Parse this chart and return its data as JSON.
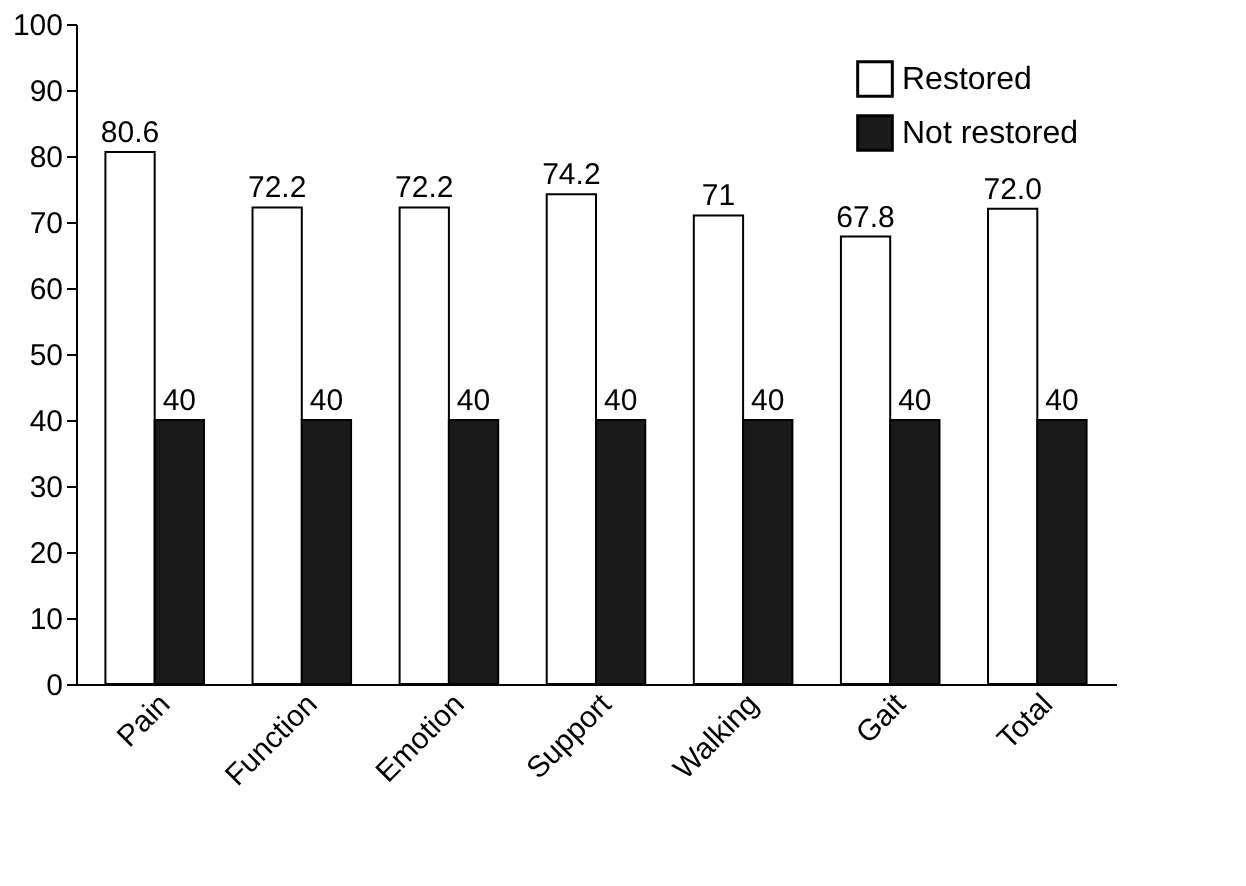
{
  "chart_data": {
    "type": "bar",
    "categories": [
      "Pain",
      "Function",
      "Emotion",
      "Support",
      "Walking",
      "Gait",
      "Total"
    ],
    "series": [
      {
        "name": "Restored",
        "color": "#ffffff",
        "values": [
          80.6,
          72.2,
          72.2,
          74.2,
          71,
          67.8,
          72.0
        ],
        "value_labels": [
          "80.6",
          "72.2",
          "72.2",
          "74.2",
          "71",
          "67.8",
          "72.0"
        ]
      },
      {
        "name": "Not restored",
        "color": "#1a1a1a",
        "values": [
          40,
          40,
          40,
          40,
          40,
          40,
          40
        ],
        "value_labels": [
          "40",
          "40",
          "40",
          "40",
          "40",
          "40",
          "40"
        ]
      }
    ],
    "ylim": [
      0,
      100
    ],
    "yticks": [
      0,
      10,
      20,
      30,
      40,
      50,
      60,
      70,
      80,
      90,
      100
    ],
    "grid": false,
    "legend": "top right"
  }
}
